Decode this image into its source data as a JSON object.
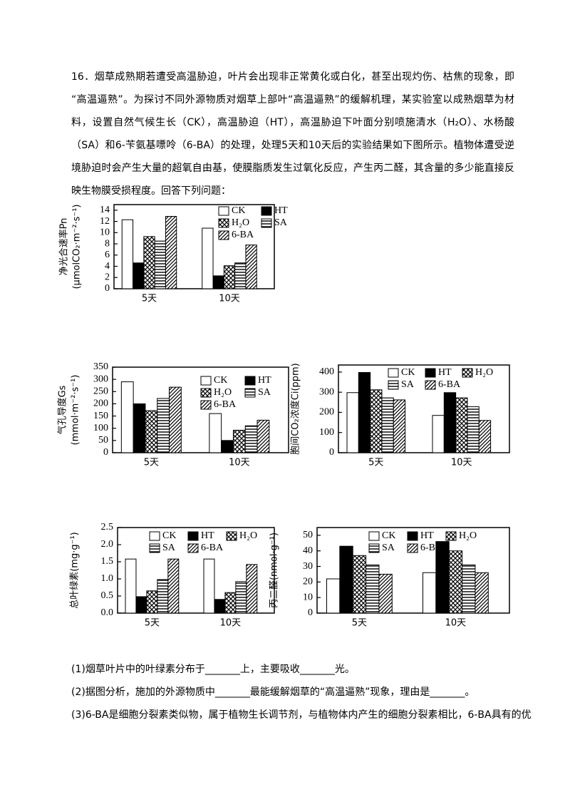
{
  "question": {
    "text": "16．烟草成熟期若遭受高温胁迫，叶片会出现非正常黄化或白化，甚至出现灼伤、枯焦的现象，即“高温逼熟”。为探讨不同外源物质对烟草上部叶“高温逼熟”的缓解机理，某实验室以成熟烟草为材料，设置自然气候生长（CK），高温胁迫（HT），高温胁迫下叶面分别喷施清水（H₂O）、水杨酸（SA）和6-苄氨基嘌呤（6-BA）的处理，处理5天和10天后的实验结果如下图所示。植物体遭受逆境胁迫时会产生大量的超氧自由基，使膜脂质发生过氧化反应，产生丙二醛，其含量的多少能直接反映生物膜受损程度。回答下列问题："
  },
  "sub_questions": [
    "(1)烟草叶片中的叶绿素分布于_______上，主要吸收_______光。",
    "(2)据图分析，施加的外源物质中_______最能缓解烟草的“高温逼熟”现象，理由是_______。",
    "(3)6-BA是细胞分裂素类似物，属于植物生长调节剂，与植物体内产生的细胞分裂素相比，6-BA具有的优"
  ],
  "chart_data": [
    {
      "type": "bar",
      "ylabel": [
        "净光合速率Pn",
        "(μmolCO₂·m⁻²·s⁻¹)"
      ],
      "categories": [
        "5天",
        "10天"
      ],
      "ylim": [
        0,
        15
      ],
      "yticks": [
        0,
        2,
        4,
        6,
        8,
        10,
        12,
        14
      ],
      "series": [
        {
          "name": "CK",
          "color": "#ffffff",
          "pattern": "none",
          "values": [
            12.3,
            10.8
          ]
        },
        {
          "name": "HT",
          "color": "#000000",
          "pattern": "none",
          "values": [
            4.6,
            2.3
          ]
        },
        {
          "name": "H₂O",
          "color": "#ffffff",
          "pattern": "cross",
          "values": [
            9.3,
            4.1
          ]
        },
        {
          "name": "SA",
          "color": "#ffffff",
          "pattern": "horizontal",
          "values": [
            8.5,
            4.6
          ]
        },
        {
          "name": "6-BA",
          "color": "#ffffff",
          "pattern": "diagonal",
          "values": [
            12.9,
            7.8
          ]
        }
      ]
    },
    {
      "type": "bar",
      "ylabel": [
        "气孔导度Gs",
        "(mmol·m⁻²·s⁻¹)"
      ],
      "categories": [
        "5天",
        "10天"
      ],
      "ylim": [
        0,
        350
      ],
      "yticks": [
        0,
        50,
        100,
        150,
        200,
        250,
        300,
        350
      ],
      "series": [
        {
          "name": "CK",
          "color": "#ffffff",
          "pattern": "none",
          "values": [
            290,
            160
          ]
        },
        {
          "name": "HT",
          "color": "#000000",
          "pattern": "none",
          "values": [
            200,
            50
          ]
        },
        {
          "name": "H₂O",
          "color": "#ffffff",
          "pattern": "cross",
          "values": [
            172,
            92
          ]
        },
        {
          "name": "SA",
          "color": "#ffffff",
          "pattern": "horizontal",
          "values": [
            222,
            110
          ]
        },
        {
          "name": "6-BA",
          "color": "#ffffff",
          "pattern": "diagonal",
          "values": [
            268,
            133
          ]
        }
      ]
    },
    {
      "type": "bar",
      "ylabel": [
        "胞间CO₂浓度Ci(ppm)"
      ],
      "categories": [
        "5天",
        "10天"
      ],
      "ylim": [
        0,
        435
      ],
      "yticks": [
        0,
        100,
        200,
        300,
        400
      ],
      "series": [
        {
          "name": "CK",
          "color": "#ffffff",
          "pattern": "none",
          "values": [
            298,
            185
          ]
        },
        {
          "name": "HT",
          "color": "#000000",
          "pattern": "none",
          "values": [
            398,
            298
          ]
        },
        {
          "name": "H₂O",
          "color": "#ffffff",
          "pattern": "cross",
          "values": [
            312,
            272
          ]
        },
        {
          "name": "SA",
          "color": "#ffffff",
          "pattern": "horizontal",
          "values": [
            272,
            228
          ]
        },
        {
          "name": "6-BA",
          "color": "#ffffff",
          "pattern": "diagonal",
          "values": [
            262,
            160
          ]
        }
      ]
    },
    {
      "type": "bar",
      "ylabel": [
        "总叶绿素(mg·g⁻¹)"
      ],
      "categories": [
        "5天",
        "10天"
      ],
      "ylim": [
        0,
        2.5
      ],
      "yticks": [
        {
          "value": 0,
          "label": "0.0"
        },
        {
          "value": 0.5,
          "label": "0.5"
        },
        {
          "value": 1,
          "label": "1.0"
        },
        {
          "value": 1.5,
          "label": "1.5"
        },
        {
          "value": 2,
          "label": "2.0"
        },
        {
          "value": 2.5,
          "label": "2.5"
        }
      ],
      "series": [
        {
          "name": "CK",
          "color": "#ffffff",
          "pattern": "none",
          "values": [
            1.58,
            1.58
          ]
        },
        {
          "name": "HT",
          "color": "#000000",
          "pattern": "none",
          "values": [
            0.48,
            0.4
          ]
        },
        {
          "name": "H₂O",
          "color": "#ffffff",
          "pattern": "cross",
          "values": [
            0.65,
            0.6
          ]
        },
        {
          "name": "SA",
          "color": "#ffffff",
          "pattern": "horizontal",
          "values": [
            0.98,
            0.92
          ]
        },
        {
          "name": "6-BA",
          "color": "#ffffff",
          "pattern": "diagonal",
          "values": [
            1.58,
            1.42
          ]
        }
      ]
    },
    {
      "type": "bar",
      "ylabel": [
        "丙二醛(nmol·g⁻¹)"
      ],
      "categories": [
        "5天",
        "10天"
      ],
      "ylim": [
        0,
        55
      ],
      "yticks": [
        0,
        10,
        20,
        30,
        40,
        50
      ],
      "series": [
        {
          "name": "CK",
          "color": "#ffffff",
          "pattern": "none",
          "values": [
            22,
            26
          ]
        },
        {
          "name": "HT",
          "color": "#000000",
          "pattern": "none",
          "values": [
            43,
            46
          ]
        },
        {
          "name": "H₂O",
          "color": "#ffffff",
          "pattern": "cross",
          "values": [
            37,
            40
          ]
        },
        {
          "name": "SA",
          "color": "#ffffff",
          "pattern": "horizontal",
          "values": [
            31,
            31
          ]
        },
        {
          "name": "6-BA",
          "color": "#ffffff",
          "pattern": "diagonal",
          "values": [
            25,
            26
          ]
        }
      ]
    }
  ]
}
